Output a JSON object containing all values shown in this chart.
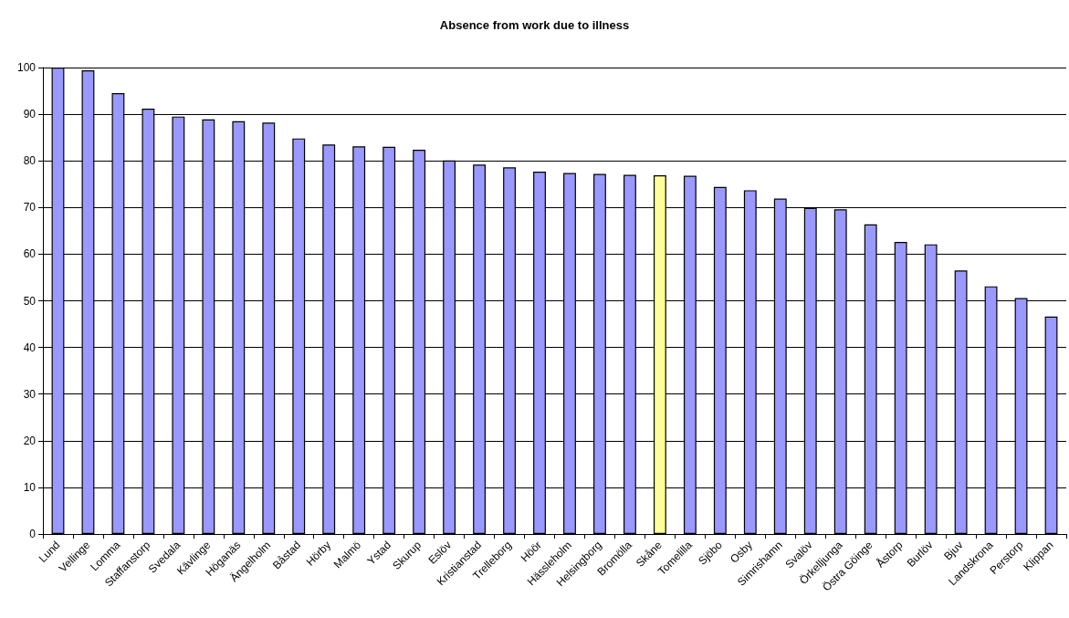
{
  "chart_data": {
    "type": "bar",
    "title": "Absence from work due to illness",
    "categories": [
      "Lund",
      "Vellinge",
      "Lomma",
      "Staffanstorp",
      "Svedala",
      "Kävlinge",
      "Höganäs",
      "Ängelholm",
      "Båstad",
      "Hörby",
      "Malmö",
      "Ystad",
      "Skurup",
      "Eslöv",
      "Kristianstad",
      "Trelleborg",
      "Höör",
      "Hässleholm",
      "Helsingborg",
      "Bromölla",
      "Skåne",
      "Tomelilla",
      "Sjöbo",
      "Osby",
      "Simrishamn",
      "Svalöv",
      "Örkelljunga",
      "Östra Göinge",
      "Åstorp",
      "Burlöv",
      "Bjuv",
      "Landskrona",
      "Perstorp",
      "Klippan"
    ],
    "values": [
      100,
      99.4,
      94.5,
      91.2,
      89.5,
      88.9,
      88.5,
      88.2,
      84.8,
      83.5,
      83.1,
      83.0,
      82.4,
      80.1,
      79.2,
      78.6,
      77.7,
      77.4,
      77.2,
      77.0,
      76.9,
      76.8,
      74.4,
      73.7,
      71.9,
      69.9,
      69.6,
      66.4,
      62.6,
      62.1,
      56.5,
      53.1,
      50.6,
      46.6
    ],
    "colors": [
      "#9999ff",
      "#9999ff",
      "#9999ff",
      "#9999ff",
      "#9999ff",
      "#9999ff",
      "#9999ff",
      "#9999ff",
      "#9999ff",
      "#9999ff",
      "#9999ff",
      "#9999ff",
      "#9999ff",
      "#9999ff",
      "#9999ff",
      "#9999ff",
      "#9999ff",
      "#9999ff",
      "#9999ff",
      "#9999ff",
      "#ffff99",
      "#9999ff",
      "#9999ff",
      "#9999ff",
      "#9999ff",
      "#9999ff",
      "#9999ff",
      "#9999ff",
      "#9999ff",
      "#9999ff",
      "#9999ff",
      "#9999ff",
      "#9999ff",
      "#9999ff"
    ],
    "ylim": [
      0,
      100
    ],
    "yticks": [
      0,
      10,
      20,
      30,
      40,
      50,
      60,
      70,
      80,
      90,
      100
    ],
    "grid": "y"
  }
}
